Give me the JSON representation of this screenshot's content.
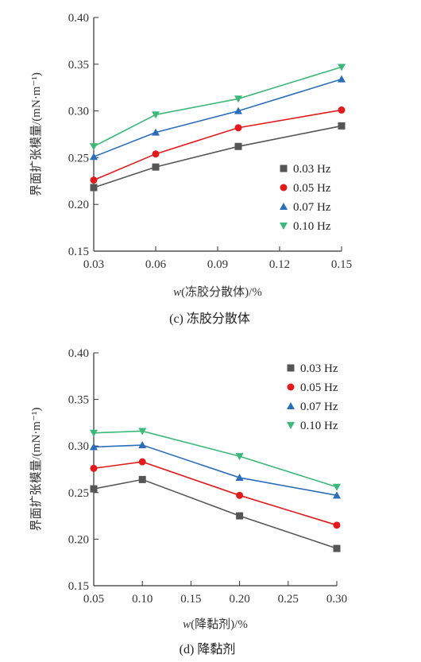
{
  "chart_data": [
    {
      "type": "line",
      "caption": "(c) 冻胶分散体",
      "xlabel_var": "w",
      "xlabel": "(冻胶分散体)/%",
      "ylabel": "界面扩张模量/(mN·m⁻¹)",
      "x": [
        0.03,
        0.06,
        0.1,
        0.15
      ],
      "xlim": [
        0.03,
        0.15
      ],
      "ylim": [
        0.15,
        0.4
      ],
      "xticks": [
        "0.03",
        "0.06",
        "0.09",
        "0.12",
        "0.15"
      ],
      "xtick_values": [
        0.03,
        0.06,
        0.09,
        0.12,
        0.15
      ],
      "yticks": [
        "0.15",
        "0.20",
        "0.25",
        "0.30",
        "0.35",
        "0.40"
      ],
      "ytick_values": [
        0.15,
        0.2,
        0.25,
        0.3,
        0.35,
        0.4
      ],
      "legend_position": "bottom-right",
      "series": [
        {
          "name": "0.03 Hz",
          "values": [
            0.218,
            0.24,
            0.262,
            0.284
          ],
          "color": "#555555",
          "marker": "square"
        },
        {
          "name": "0.05 Hz",
          "values": [
            0.226,
            0.254,
            0.282,
            0.301
          ],
          "color": "#e31a1c",
          "marker": "circle"
        },
        {
          "name": "0.07 Hz",
          "values": [
            0.251,
            0.277,
            0.3,
            0.334
          ],
          "color": "#2a6ebb",
          "marker": "triangle-up"
        },
        {
          "name": "0.10 Hz",
          "values": [
            0.262,
            0.296,
            0.313,
            0.347
          ],
          "color": "#3cb878",
          "marker": "triangle-down"
        }
      ]
    },
    {
      "type": "line",
      "caption": "(d) 降黏剂",
      "xlabel_var": "w",
      "xlabel": "(降黏剂)/%",
      "ylabel": "界面扩张模量/(mN·m⁻¹)",
      "x": [
        0.05,
        0.1,
        0.2,
        0.3
      ],
      "xlim": [
        0.05,
        0.3
      ],
      "ylim": [
        0.15,
        0.4
      ],
      "xticks": [
        "0.05",
        "0.10",
        "0.15",
        "0.20",
        "0.25",
        "0.30"
      ],
      "xtick_values": [
        0.05,
        0.1,
        0.15,
        0.2,
        0.25,
        0.3
      ],
      "yticks": [
        "0.15",
        "0.20",
        "0.25",
        "0.30",
        "0.35",
        "0.40"
      ],
      "ytick_values": [
        0.15,
        0.2,
        0.25,
        0.3,
        0.35,
        0.4
      ],
      "legend_position": "top-right",
      "series": [
        {
          "name": "0.03 Hz",
          "values": [
            0.254,
            0.264,
            0.225,
            0.19
          ],
          "color": "#555555",
          "marker": "square"
        },
        {
          "name": "0.05 Hz",
          "values": [
            0.276,
            0.283,
            0.247,
            0.215
          ],
          "color": "#e31a1c",
          "marker": "circle"
        },
        {
          "name": "0.07 Hz",
          "values": [
            0.299,
            0.301,
            0.266,
            0.247
          ],
          "color": "#2a6ebb",
          "marker": "triangle-up"
        },
        {
          "name": "0.10 Hz",
          "values": [
            0.314,
            0.316,
            0.289,
            0.256
          ],
          "color": "#3cb878",
          "marker": "triangle-down"
        }
      ]
    }
  ]
}
